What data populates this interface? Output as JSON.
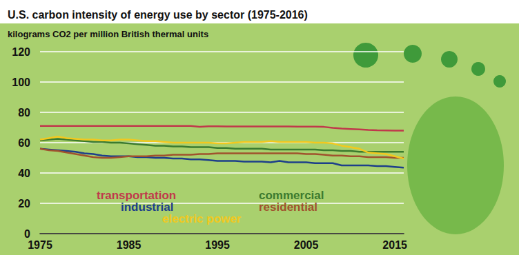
{
  "chart_data": {
    "type": "line",
    "title": "U.S. carbon intensity of energy use by sector (1975-2016)",
    "subtitle": "kilograms CO2 per million British thermal units",
    "x": [
      1975,
      1976,
      1977,
      1978,
      1979,
      1980,
      1981,
      1982,
      1983,
      1984,
      1985,
      1986,
      1987,
      1988,
      1989,
      1990,
      1991,
      1992,
      1993,
      1994,
      1995,
      1996,
      1997,
      1998,
      1999,
      2000,
      2001,
      2002,
      2003,
      2004,
      2005,
      2006,
      2007,
      2008,
      2009,
      2010,
      2011,
      2012,
      2013,
      2014,
      2015,
      2016
    ],
    "series": [
      {
        "name": "transportation",
        "color": "#c0394b",
        "values": [
          71,
          71,
          71,
          71,
          71,
          71,
          71,
          71,
          71,
          71,
          71,
          71,
          71,
          71,
          71,
          71,
          71,
          71,
          70.5,
          70.8,
          70.8,
          70.7,
          70.7,
          70.7,
          70.7,
          70.7,
          70.7,
          70.7,
          70.7,
          70.6,
          70.6,
          70.6,
          70.4,
          69.8,
          69.3,
          69,
          68.7,
          68.4,
          68.2,
          68.1,
          68,
          67.9
        ]
      },
      {
        "name": "commercial",
        "color": "#3b7a2e",
        "values": [
          61.5,
          62,
          62.5,
          62,
          61.5,
          61,
          60.5,
          60.5,
          60,
          60,
          59.5,
          59,
          58.5,
          58,
          58,
          57.5,
          57.5,
          57,
          57,
          57,
          56.5,
          56.5,
          56,
          56,
          56,
          56,
          55.5,
          55.5,
          55.5,
          55.5,
          55.5,
          55.5,
          55,
          55,
          54.5,
          54.5,
          54,
          54,
          54,
          54,
          54,
          54
        ]
      },
      {
        "name": "industrial",
        "color": "#1d3f8a",
        "values": [
          56,
          55.5,
          55,
          54.5,
          54,
          53,
          52.5,
          51.5,
          51,
          51,
          51,
          50.5,
          50.5,
          50,
          50,
          49.5,
          49.5,
          49,
          49,
          48.5,
          48,
          48,
          48,
          47.5,
          47.5,
          47.5,
          47,
          48,
          47,
          47,
          47,
          46.5,
          46.5,
          46.5,
          45,
          45,
          45,
          45,
          44.5,
          44.5,
          44,
          43.5
        ]
      },
      {
        "name": "residential",
        "color": "#a0522d",
        "values": [
          56,
          55,
          54.5,
          53.5,
          52.5,
          51.5,
          50.5,
          50,
          50,
          50.5,
          51,
          51,
          51,
          51.5,
          51.5,
          52,
          52,
          52,
          52.5,
          52.5,
          53,
          53,
          53,
          53,
          53,
          53,
          53,
          53,
          53,
          53,
          52.5,
          52.5,
          52,
          51.5,
          51.5,
          51,
          51,
          50.5,
          50.5,
          50.5,
          50,
          50
        ]
      },
      {
        "name": "electric power",
        "color": "#f2c81e",
        "values": [
          62,
          63,
          64,
          63,
          62.5,
          62,
          62,
          61.5,
          61.5,
          62,
          62,
          61.5,
          61,
          61,
          60.5,
          60,
          60,
          60,
          60,
          60,
          59.5,
          59.5,
          60,
          60.5,
          60.5,
          60.5,
          61,
          60.5,
          60.5,
          60.5,
          60.5,
          60,
          60,
          59.5,
          58,
          57,
          56,
          53.5,
          53,
          52.5,
          51,
          49.5
        ]
      }
    ],
    "xlim": [
      1975,
      2016
    ],
    "xticks": [
      1975,
      1985,
      1995,
      2005,
      2015
    ],
    "ylim": [
      0,
      120
    ],
    "yticks": [
      0,
      20,
      40,
      60,
      80,
      100,
      120
    ],
    "grid": true,
    "legend": "bottom"
  }
}
